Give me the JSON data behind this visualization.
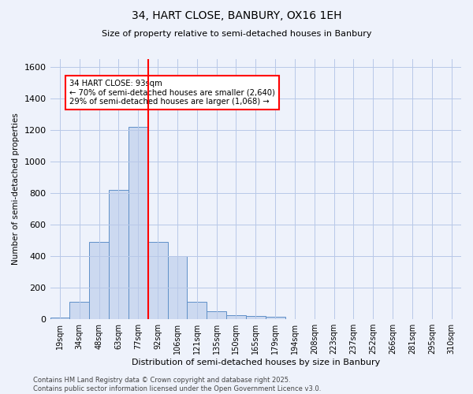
{
  "title1": "34, HART CLOSE, BANBURY, OX16 1EH",
  "title2": "Size of property relative to semi-detached houses in Banbury",
  "xlabel": "Distribution of semi-detached houses by size in Banbury",
  "ylabel": "Number of semi-detached properties",
  "bin_labels": [
    "19sqm",
    "34sqm",
    "48sqm",
    "63sqm",
    "77sqm",
    "92sqm",
    "106sqm",
    "121sqm",
    "135sqm",
    "150sqm",
    "165sqm",
    "179sqm",
    "194sqm",
    "208sqm",
    "223sqm",
    "237sqm",
    "252sqm",
    "266sqm",
    "281sqm",
    "295sqm",
    "310sqm"
  ],
  "bar_values": [
    10,
    110,
    490,
    820,
    1220,
    490,
    400,
    110,
    50,
    25,
    18,
    15,
    0,
    0,
    0,
    0,
    0,
    0,
    0,
    0,
    0
  ],
  "bar_color": "#ccd9f0",
  "bar_edgecolor": "#6090c8",
  "vline_color": "red",
  "vline_x_index": 5,
  "annotation_text": "34 HART CLOSE: 93sqm\n← 70% of semi-detached houses are smaller (2,640)\n29% of semi-detached houses are larger (1,068) →",
  "annotation_box_color": "white",
  "annotation_box_edgecolor": "red",
  "ylim": [
    0,
    1650
  ],
  "yticks": [
    0,
    200,
    400,
    600,
    800,
    1000,
    1200,
    1400,
    1600
  ],
  "grid_color": "#b8c8e8",
  "bg_color": "#eef2fb",
  "footer": "Contains HM Land Registry data © Crown copyright and database right 2025.\nContains public sector information licensed under the Open Government Licence v3.0."
}
